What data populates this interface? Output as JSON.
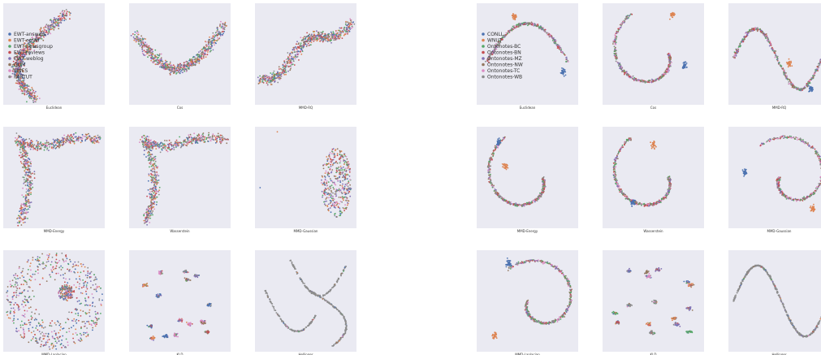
{
  "chart_data": [
    {
      "type": "scatter",
      "title": "",
      "grid": false,
      "legend": {
        "placement": "left",
        "entries": [
          {
            "name": "EWT-answers",
            "color": "#4c72b0"
          },
          {
            "name": "EWT-email",
            "color": "#dd8452"
          },
          {
            "name": "EWT-newsgroup",
            "color": "#55a868"
          },
          {
            "name": "EWT-reviews",
            "color": "#c44e52"
          },
          {
            "name": "EWT-weblog",
            "color": "#8172b3"
          },
          {
            "name": "GUM",
            "color": "#937860"
          },
          {
            "name": "LINES",
            "color": "#da8bc3"
          },
          {
            "name": "PARTUT",
            "color": "#8c8c8c"
          }
        ]
      },
      "panels": [
        {
          "label": "Euclidean",
          "pattern": "arc"
        },
        {
          "label": "Cos",
          "pattern": "arc2"
        },
        {
          "label": "MMD-RQ",
          "pattern": "band"
        },
        {
          "label": "MMD-Energy",
          "pattern": "lshape"
        },
        {
          "label": "Wasserstein",
          "pattern": "lshape"
        },
        {
          "label": "MMD-Gaussian",
          "pattern": "ellipse"
        },
        {
          "label": "MMD-Laplacian",
          "pattern": "radial"
        },
        {
          "label": "KLD",
          "pattern": "clusters"
        },
        {
          "label": "Hellinger",
          "pattern": "curves"
        }
      ]
    },
    {
      "type": "scatter",
      "title": "",
      "grid": false,
      "legend": {
        "placement": "left",
        "entries": [
          {
            "name": "CONLL",
            "color": "#4c72b0"
          },
          {
            "name": "WNUT",
            "color": "#dd8452"
          },
          {
            "name": "Ontonotes-BC",
            "color": "#55a868"
          },
          {
            "name": "Ontonotes-BN",
            "color": "#c44e52"
          },
          {
            "name": "Ontonotes-MZ",
            "color": "#8172b3"
          },
          {
            "name": "Ontonotes-NW",
            "color": "#937860"
          },
          {
            "name": "Ontonotes-TC",
            "color": "#da8bc3"
          },
          {
            "name": "Ontonotes-WB",
            "color": "#8c8c8c"
          }
        ]
      },
      "panels": [
        {
          "label": "Euclidean",
          "pattern": "ner-arc"
        },
        {
          "label": "Cos",
          "pattern": "ner-swirl"
        },
        {
          "label": "MMD-RQ",
          "pattern": "ner-wave"
        },
        {
          "label": "MMD-Energy",
          "pattern": "ner-swirl"
        },
        {
          "label": "Wasserstein",
          "pattern": "ner-swirl2"
        },
        {
          "label": "MMD-Gaussian",
          "pattern": "ner-spiral"
        },
        {
          "label": "MMD-Laplacian",
          "pattern": "ner-spiral2"
        },
        {
          "label": "KLD",
          "pattern": "clusters"
        },
        {
          "label": "Hellinger",
          "pattern": "ner-s"
        }
      ]
    }
  ]
}
